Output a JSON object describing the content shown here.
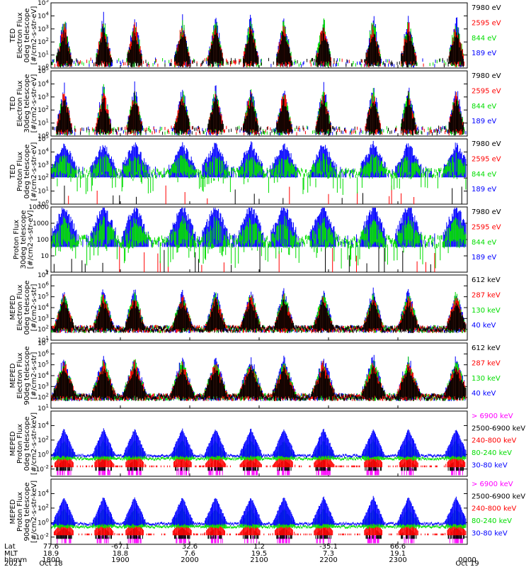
{
  "chart_data": [
    {
      "type": "scatter",
      "ylabel": [
        "TED",
        "Electron Flux",
        "0deg telescope",
        "[#/cm2-s-str-eV]"
      ],
      "yscale": "log",
      "ylim_exp": [
        0,
        5
      ],
      "yticks": [
        "10^0",
        "10^1",
        "10^2",
        "10^3",
        "10^4",
        "10^5"
      ],
      "legend": [
        {
          "label": "7980 eV",
          "color": "#000000"
        },
        {
          "label": "2595 eV",
          "color": "#ff0000"
        },
        {
          "label": "844 eV",
          "color": "#00dd00"
        },
        {
          "label": "189 eV",
          "color": "#0000ff"
        }
      ],
      "drawOrder": [
        "#0000ff",
        "#00dd00",
        "#ff0000",
        "#000000"
      ],
      "style": "sparse-spikes",
      "seed": 11
    },
    {
      "type": "scatter",
      "ylabel": [
        "TED",
        "Electron Flux",
        "30deg telescope",
        "[#/cm2-s-str-eV]"
      ],
      "yscale": "log",
      "ylim_exp": [
        0,
        5
      ],
      "yticks": [
        "10^0",
        "10^1",
        "10^2",
        "10^3",
        "10^4",
        "10^5"
      ],
      "legend": [
        {
          "label": "7980 eV",
          "color": "#000000"
        },
        {
          "label": "2595 eV",
          "color": "#ff0000"
        },
        {
          "label": "844 eV",
          "color": "#00dd00"
        },
        {
          "label": "189 eV",
          "color": "#0000ff"
        }
      ],
      "drawOrder": [
        "#0000ff",
        "#00dd00",
        "#ff0000",
        "#000000"
      ],
      "style": "sparse-spikes",
      "seed": 23
    },
    {
      "type": "scatter",
      "ylabel": [
        "TED",
        "Proton Flux",
        "0deg telescope",
        "[#/cm2-s-str-eV]"
      ],
      "yscale": "log",
      "ylim_exp": [
        0,
        5
      ],
      "yticks": [
        "10^0",
        "10^1",
        "10^2",
        "10^3",
        "10^4",
        "10^5"
      ],
      "legend": [
        {
          "label": "7980 eV",
          "color": "#000000"
        },
        {
          "label": "2595 eV",
          "color": "#ff0000"
        },
        {
          "label": "844 eV",
          "color": "#00dd00"
        },
        {
          "label": "189 eV",
          "color": "#0000ff"
        }
      ],
      "drawOrder": [
        "#000000",
        "#ff0000",
        "#0000ff",
        "#00dd00"
      ],
      "style": "proton-dense",
      "seed": 37
    },
    {
      "type": "scatter",
      "ylabel": [
        "Proton Flux",
        "30deg telescope",
        "[#/cm2-s-str-eV]"
      ],
      "yscale": "log",
      "ylim_exp": [
        0,
        4
      ],
      "yticks": [
        "1",
        "10",
        "100",
        "1000",
        "10000"
      ],
      "legend": [
        {
          "label": "7980 eV",
          "color": "#000000"
        },
        {
          "label": "2595 eV",
          "color": "#ff0000"
        },
        {
          "label": "844 eV",
          "color": "#00dd00"
        },
        {
          "label": "189 eV",
          "color": "#0000ff"
        }
      ],
      "drawOrder": [
        "#000000",
        "#ff0000",
        "#0000ff",
        "#00dd00"
      ],
      "style": "proton-dense",
      "seed": 41
    },
    {
      "type": "scatter",
      "ylabel": [
        "MEPED",
        "Electron Flux",
        "0deg telescope",
        "[#/cm2-s-str]"
      ],
      "yscale": "log",
      "ylim_exp": [
        1,
        7
      ],
      "yticks": [
        "10^1",
        "10^2",
        "10^3",
        "10^4",
        "10^5",
        "10^6",
        "10^7"
      ],
      "legend": [
        {
          "label": "612 keV",
          "color": "#000000"
        },
        {
          "label": "287 keV",
          "color": "#ff0000"
        },
        {
          "label": "130 keV",
          "color": "#00dd00"
        },
        {
          "label": "40 keV",
          "color": "#0000ff"
        }
      ],
      "drawOrder": [
        "#0000ff",
        "#00dd00",
        "#ff0000",
        "#000000"
      ],
      "style": "meped-e0",
      "seed": 53
    },
    {
      "type": "scatter",
      "ylabel": [
        "MEPED",
        "Electron Flux",
        "90deg telescope",
        "[#/cm2-s-str]"
      ],
      "yscale": "log",
      "ylim_exp": [
        1,
        7
      ],
      "yticks": [
        "10^1",
        "10^2",
        "10^3",
        "10^4",
        "10^5",
        "10^6",
        "10^7"
      ],
      "legend": [
        {
          "label": "612 keV",
          "color": "#000000"
        },
        {
          "label": "287 keV",
          "color": "#ff0000"
        },
        {
          "label": "130 keV",
          "color": "#00dd00"
        },
        {
          "label": "40 keV",
          "color": "#0000ff"
        }
      ],
      "drawOrder": [
        "#0000ff",
        "#00dd00",
        "#ff0000",
        "#000000"
      ],
      "style": "meped-e90",
      "seed": 67
    },
    {
      "type": "scatter",
      "ylabel": [
        "MEPED",
        "Proton Flux",
        "0deg telescope",
        "[#/cm2-s-str-keV]"
      ],
      "yscale": "log",
      "ylim_exp": [
        -3,
        6
      ],
      "yticks": [
        "10^-2",
        "10^0",
        "10^2",
        "10^4"
      ],
      "ytick_exps": [
        -2,
        0,
        2,
        4
      ],
      "legend": [
        {
          "label": "> 6900 keV",
          "color": "#ff00ff"
        },
        {
          "label": "2500-6900 keV",
          "color": "#000000"
        },
        {
          "label": "240-800 keV",
          "color": "#ff0000"
        },
        {
          "label": "80-240 keV",
          "color": "#00dd00"
        },
        {
          "label": "30-80 keV",
          "color": "#0000ff"
        }
      ],
      "drawOrder": [
        "#ff00ff",
        "#000000",
        "#ff0000",
        "#00dd00",
        "#0000ff"
      ],
      "style": "meped-p0",
      "seed": 79
    },
    {
      "type": "scatter",
      "ylabel": [
        "MEPED",
        "Proton Flux",
        "90deg telescope",
        "[#/cm2-s-str-keV]"
      ],
      "yscale": "log",
      "ylim_exp": [
        -3,
        6
      ],
      "yticks": [
        "10^-2",
        "10^0",
        "10^2",
        "10^4"
      ],
      "ytick_exps": [
        -2,
        0,
        2,
        4
      ],
      "legend": [
        {
          "label": "> 6900 keV",
          "color": "#ff00ff"
        },
        {
          "label": "2500-6900 keV",
          "color": "#000000"
        },
        {
          "label": "240-800 keV",
          "color": "#ff0000"
        },
        {
          "label": "80-240 keV",
          "color": "#00dd00"
        },
        {
          "label": "30-80 keV",
          "color": "#0000ff"
        }
      ],
      "drawOrder": [
        "#ff00ff",
        "#000000",
        "#ff0000",
        "#00dd00",
        "#0000ff"
      ],
      "style": "meped-p90",
      "seed": 83
    }
  ],
  "x_axis": {
    "row_labels": [
      "Lat",
      "MLT",
      "hhmm",
      "2021"
    ],
    "columns": [
      {
        "lat": "77.6",
        "mlt": "18.9",
        "hhmm": "1800",
        "date": "Oct 18"
      },
      {
        "lat": "-67.1",
        "mlt": "18.8",
        "hhmm": "1900",
        "date": ""
      },
      {
        "lat": "32.6",
        "mlt": "7.6",
        "hhmm": "2000",
        "date": ""
      },
      {
        "lat": "1.2",
        "mlt": "19.5",
        "hhmm": "2100",
        "date": ""
      },
      {
        "lat": "-35.1",
        "mlt": "7.3",
        "hhmm": "2200",
        "date": ""
      },
      {
        "lat": "66.6",
        "mlt": "19.1",
        "hhmm": "2300",
        "date": ""
      },
      {
        "lat": "",
        "mlt": "",
        "hhmm": "0000",
        "date": "Oct 19"
      }
    ]
  }
}
